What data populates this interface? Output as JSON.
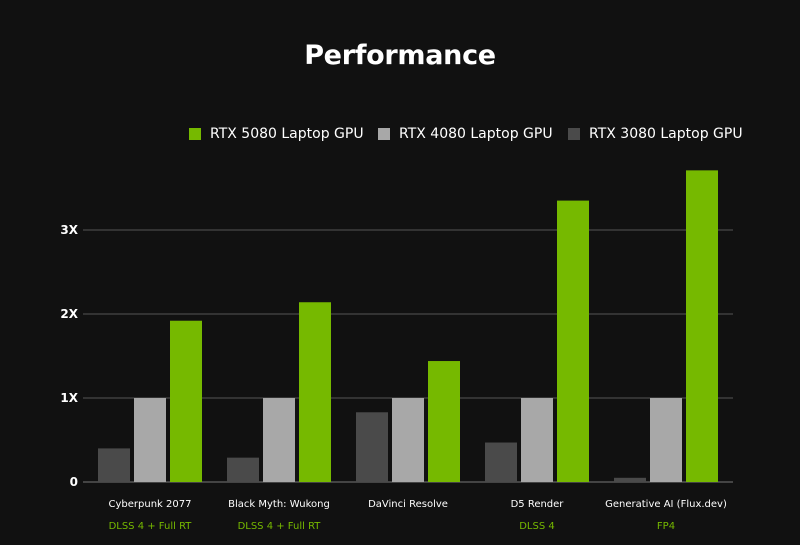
{
  "chart_data": {
    "type": "bar",
    "title": "Performance",
    "categories": [
      "Cyberpunk 2077",
      "Black Myth: Wukong",
      "DaVinci Resolve",
      "D5 Render",
      "Generative AI (Flux.dev)"
    ],
    "sublabels": [
      "DLSS 4 + Full RT",
      "DLSS 4 + Full RT",
      "",
      "DLSS 4",
      "FP4"
    ],
    "series": [
      {
        "name": "RTX 3080 Laptop GPU",
        "color": "#4a4a4a",
        "values": [
          0.4,
          0.29,
          0.83,
          0.47,
          0.05
        ]
      },
      {
        "name": "RTX 4080 Laptop GPU",
        "color": "#a8a8a8",
        "values": [
          1.0,
          1.0,
          1.0,
          1.0,
          1.0
        ]
      },
      {
        "name": "RTX 5080 Laptop GPU",
        "color": "#76b900",
        "values": [
          1.92,
          2.14,
          1.44,
          3.35,
          3.71
        ]
      }
    ],
    "legend_order": [
      2,
      1,
      0
    ],
    "yticks": [
      {
        "value": 0,
        "label": "0"
      },
      {
        "value": 1,
        "label": "1X"
      },
      {
        "value": 2,
        "label": "2X"
      },
      {
        "value": 3,
        "label": "3X"
      }
    ],
    "ylim": [
      0,
      3.9
    ],
    "grid": true,
    "legend_position": "top-right",
    "colors": {
      "background": "#111111",
      "text": "#ffffff",
      "sublabel": "#76b900",
      "grid": "#555555"
    }
  }
}
